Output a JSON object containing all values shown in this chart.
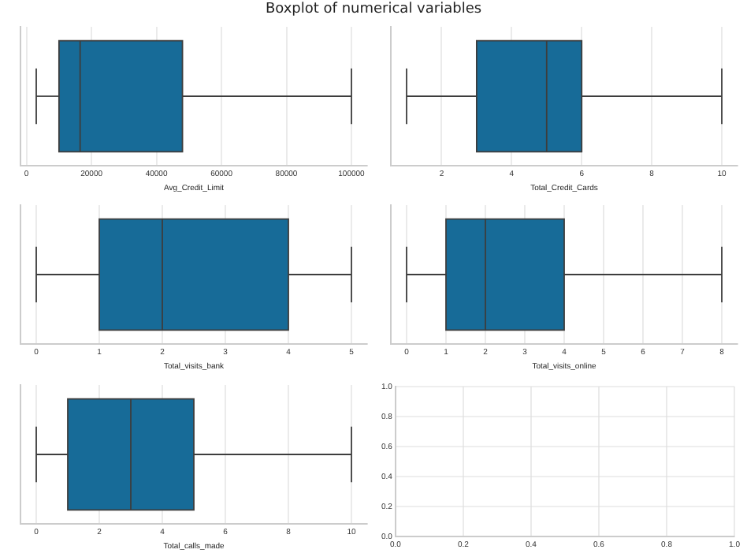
{
  "chart_data": [
    {
      "type": "box",
      "title": "Boxplot of numerical variables",
      "orientation": "horizontal",
      "categories": [
        null
      ],
      "xlabel": "Avg_Credit_Limit",
      "color": "#176b98",
      "boxes": [
        {
          "low": 3000,
          "q1": 10000,
          "median": 16500,
          "q3": 48000,
          "high": 100000
        }
      ],
      "xlim": [
        -1850,
        104850
      ],
      "xticks": [
        0,
        20000,
        40000,
        60000,
        80000,
        100000
      ],
      "grid": "x",
      "tick_labels": "x"
    },
    {
      "type": "box",
      "orientation": "horizontal",
      "categories": [
        null
      ],
      "xlabel": "Total_Credit_Cards",
      "color": "#176b98",
      "boxes": [
        {
          "low": 1,
          "q1": 3,
          "median": 5,
          "q3": 6,
          "high": 10
        }
      ],
      "xlim": [
        0.55,
        10.45
      ],
      "xticks": [
        2,
        4,
        6,
        8,
        10
      ],
      "grid": "x",
      "tick_labels": "x"
    },
    {
      "type": "box",
      "orientation": "horizontal",
      "categories": [
        null
      ],
      "xlabel": "Total_visits_bank",
      "color": "#176b98",
      "boxes": [
        {
          "low": 0,
          "q1": 1,
          "median": 2,
          "q3": 4,
          "high": 5
        }
      ],
      "xlim": [
        -0.25,
        5.25
      ],
      "xticks": [
        0,
        1,
        2,
        3,
        4,
        5
      ],
      "grid": "x",
      "tick_labels": "x"
    },
    {
      "type": "box",
      "orientation": "horizontal",
      "categories": [
        null
      ],
      "xlabel": "Total_visits_online",
      "color": "#176b98",
      "boxes": [
        {
          "low": 0,
          "q1": 1,
          "median": 2,
          "q3": 4,
          "high": 8
        }
      ],
      "xlim": [
        -0.4,
        8.4
      ],
      "xticks": [
        0,
        1,
        2,
        3,
        4,
        5,
        6,
        7,
        8
      ],
      "grid": "x",
      "tick_labels": "x"
    },
    {
      "type": "box",
      "orientation": "horizontal",
      "categories": [
        null
      ],
      "xlabel": "Total_calls_made",
      "color": "#176b98",
      "boxes": [
        {
          "low": 0,
          "q1": 1,
          "median": 3,
          "q3": 5,
          "high": 10
        }
      ],
      "xlim": [
        -0.5,
        10.5
      ],
      "xticks": [
        0,
        2,
        4,
        6,
        8,
        10
      ],
      "grid": "x",
      "tick_labels": "x"
    },
    {
      "type": "scatter",
      "xlim": [
        0,
        1
      ],
      "ylim": [
        0,
        1
      ],
      "xticks": [
        {
          "value": 0,
          "label": "0.0"
        },
        {
          "value": 0.2,
          "label": "0.2"
        },
        {
          "value": 0.4,
          "label": "0.4"
        },
        {
          "value": 0.6,
          "label": "0.6"
        },
        {
          "value": 0.8,
          "label": "0.8"
        },
        {
          "value": 1,
          "label": "1.0"
        }
      ],
      "yticks": [
        {
          "value": 0,
          "label": "0.0"
        },
        {
          "value": 0.2,
          "label": "0.2"
        },
        {
          "value": 0.4,
          "label": "0.4"
        },
        {
          "value": 0.6,
          "label": "0.6"
        },
        {
          "value": 0.8,
          "label": "0.8"
        },
        {
          "value": 1,
          "label": "1.0"
        }
      ],
      "grid": true
    }
  ]
}
